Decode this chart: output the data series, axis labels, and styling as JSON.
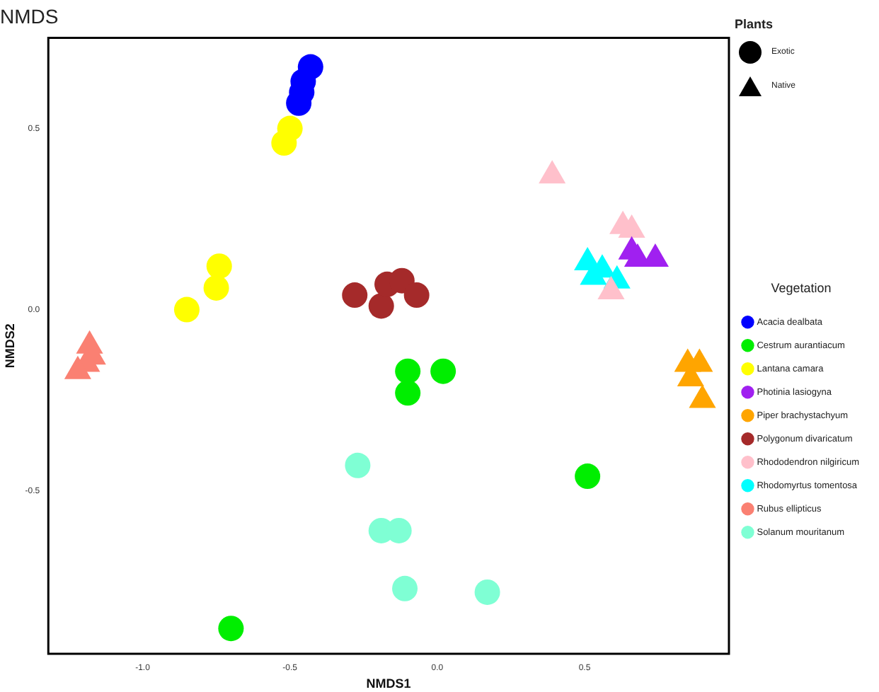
{
  "chart_data": {
    "type": "scatter",
    "title": "NMDS",
    "xlabel": "NMDS1",
    "ylabel": "NMDS2",
    "legend_title": [
      "Plants",
      "Vegetation"
    ],
    "annotations": [
      "Exotic",
      "Native"
    ],
    "xlim": [
      -1.32,
      0.99
    ],
    "ylim": [
      -0.95,
      0.75
    ],
    "xticks": [
      {
        "value": -1,
        "label": "-1.0"
      },
      {
        "value": -0.5,
        "label": "-0.5"
      },
      {
        "value": 0,
        "label": "0.0"
      },
      {
        "value": 0.5,
        "label": "0.5"
      }
    ],
    "yticks": [
      {
        "value": -0.5,
        "label": "-0.5"
      },
      {
        "value": 0,
        "label": "0.0"
      },
      {
        "value": 0.5,
        "label": "0.5"
      }
    ],
    "grid": false,
    "legend": "right",
    "series": [
      {
        "name": "Acacia dealbata",
        "color": "#0000ff",
        "marker": "circle",
        "x": [
          -0.43,
          -0.455,
          -0.46,
          -0.47
        ],
        "values": [
          0.67,
          0.63,
          0.6,
          0.57
        ]
      },
      {
        "name": "Cestrum aurantiacum",
        "color": "#00ee00",
        "marker": "circle",
        "x": [
          -0.1,
          -0.1,
          0.02,
          -0.7,
          0.51
        ],
        "values": [
          -0.17,
          -0.23,
          -0.17,
          -0.88,
          -0.46
        ]
      },
      {
        "name": "Lantana camara",
        "color": "#ffff00",
        "marker": "circle",
        "x": [
          -0.5,
          -0.52,
          -0.74,
          -0.75,
          -0.85
        ],
        "values": [
          0.5,
          0.46,
          0.12,
          0.06,
          0.0
        ]
      },
      {
        "name": "Photinia lasiogyna",
        "color": "#a020f0",
        "marker": "triangle",
        "x": [
          0.66,
          0.68,
          0.74
        ],
        "values": [
          0.16,
          0.14,
          0.14
        ]
      },
      {
        "name": "Piper brachystachyum",
        "color": "#ffa500",
        "marker": "triangle",
        "x": [
          0.85,
          0.89,
          0.86,
          0.9
        ],
        "values": [
          -0.15,
          -0.15,
          -0.19,
          -0.25
        ]
      },
      {
        "name": "Polygonum divaricatum",
        "color": "#a52a2a",
        "marker": "circle",
        "x": [
          -0.28,
          -0.19,
          -0.17,
          -0.12,
          -0.07
        ],
        "values": [
          0.04,
          0.01,
          0.07,
          0.08,
          0.04
        ]
      },
      {
        "name": "Rhododendron nilgiricum",
        "color": "#ffc0cb",
        "marker": "triangle",
        "x": [
          0.39,
          0.63,
          0.66,
          0.59
        ],
        "values": [
          0.37,
          0.23,
          0.22,
          0.05
        ]
      },
      {
        "name": "Rhodomyrtus tomentosa",
        "color": "#00ffff",
        "marker": "triangle",
        "x": [
          0.51,
          0.53,
          0.56,
          0.61
        ],
        "values": [
          0.13,
          0.09,
          0.11,
          0.08
        ]
      },
      {
        "name": "Rubus ellipticus",
        "color": "#fa8072",
        "marker": "triangle",
        "x": [
          -1.18,
          -1.17,
          -1.19,
          -1.22
        ],
        "values": [
          -0.1,
          -0.13,
          -0.15,
          -0.17
        ]
      },
      {
        "name": "Solanum mouritanum",
        "color": "#7fffd4",
        "marker": "circle",
        "x": [
          -0.27,
          -0.19,
          -0.13,
          -0.11,
          0.17
        ],
        "values": [
          -0.43,
          -0.61,
          -0.61,
          -0.77,
          -0.78
        ]
      }
    ]
  }
}
